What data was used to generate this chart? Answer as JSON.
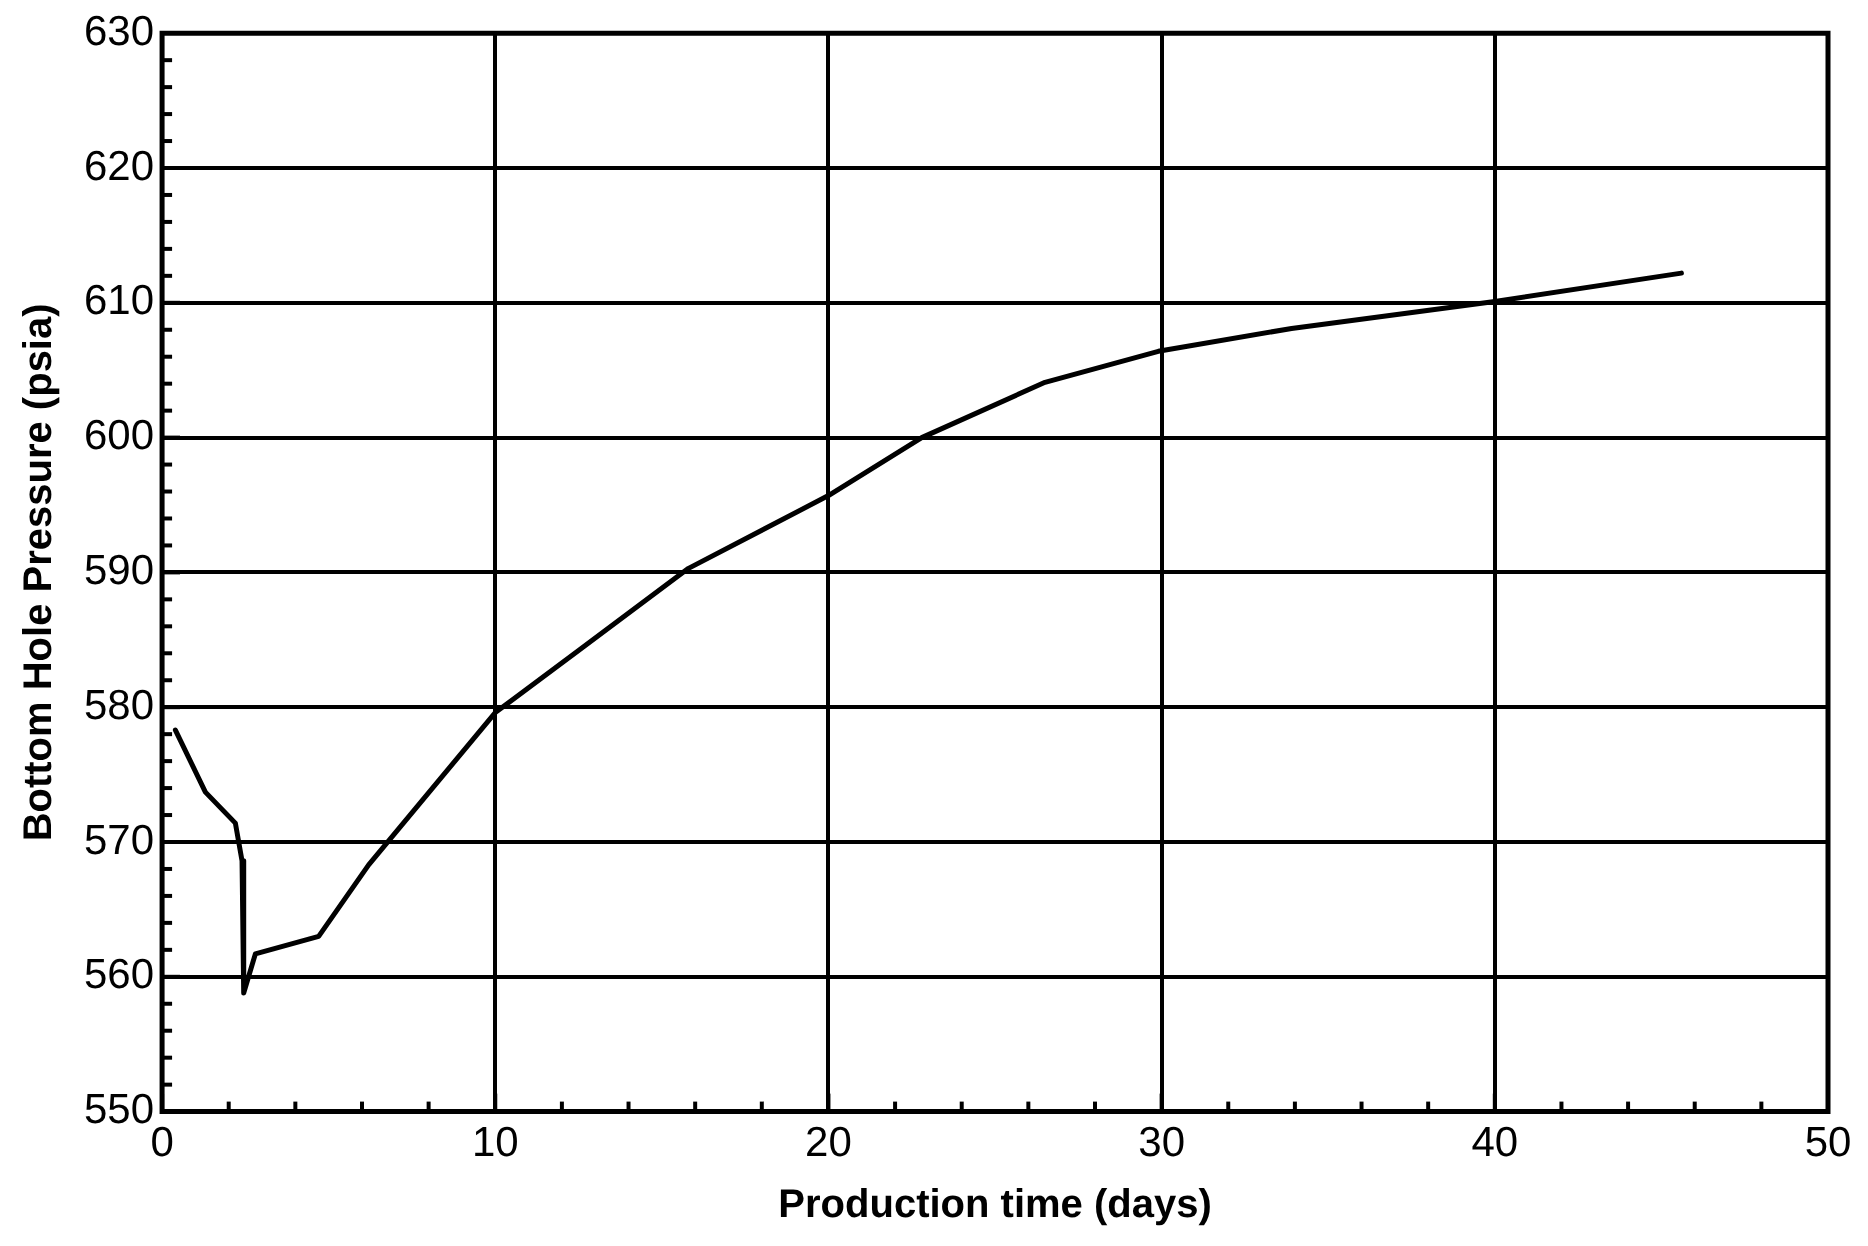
{
  "chart_data": {
    "type": "line",
    "xlabel": "Production time (days)",
    "ylabel": "Bottom Hole Pressure (psia)",
    "x": [
      0.4,
      1.3,
      2.2,
      2.4,
      2.45,
      2.8,
      4.7,
      6.2,
      10.0,
      12.5,
      15.8,
      20,
      22.8,
      26.5,
      29.9,
      33.9,
      40,
      45.6
    ],
    "series": [
      {
        "color": "#000000",
        "values": [
          578.3,
          573.7,
          571.4,
          568.6,
          558.8,
          561.7,
          563,
          568.3,
          579.6,
          584.2,
          590.3,
          595.7,
          600,
          604.1,
          606.4,
          608.1,
          610.1,
          612.2
        ]
      }
    ],
    "xlim": [
      0,
      50
    ],
    "xticks": [
      0,
      10,
      20,
      30,
      40,
      50
    ],
    "ylim": [
      550,
      630
    ],
    "yticks": [
      550,
      560,
      570,
      580,
      590,
      600,
      610,
      620,
      630
    ],
    "grid": true,
    "legend": false,
    "marker": "none",
    "line_style": "solid"
  }
}
